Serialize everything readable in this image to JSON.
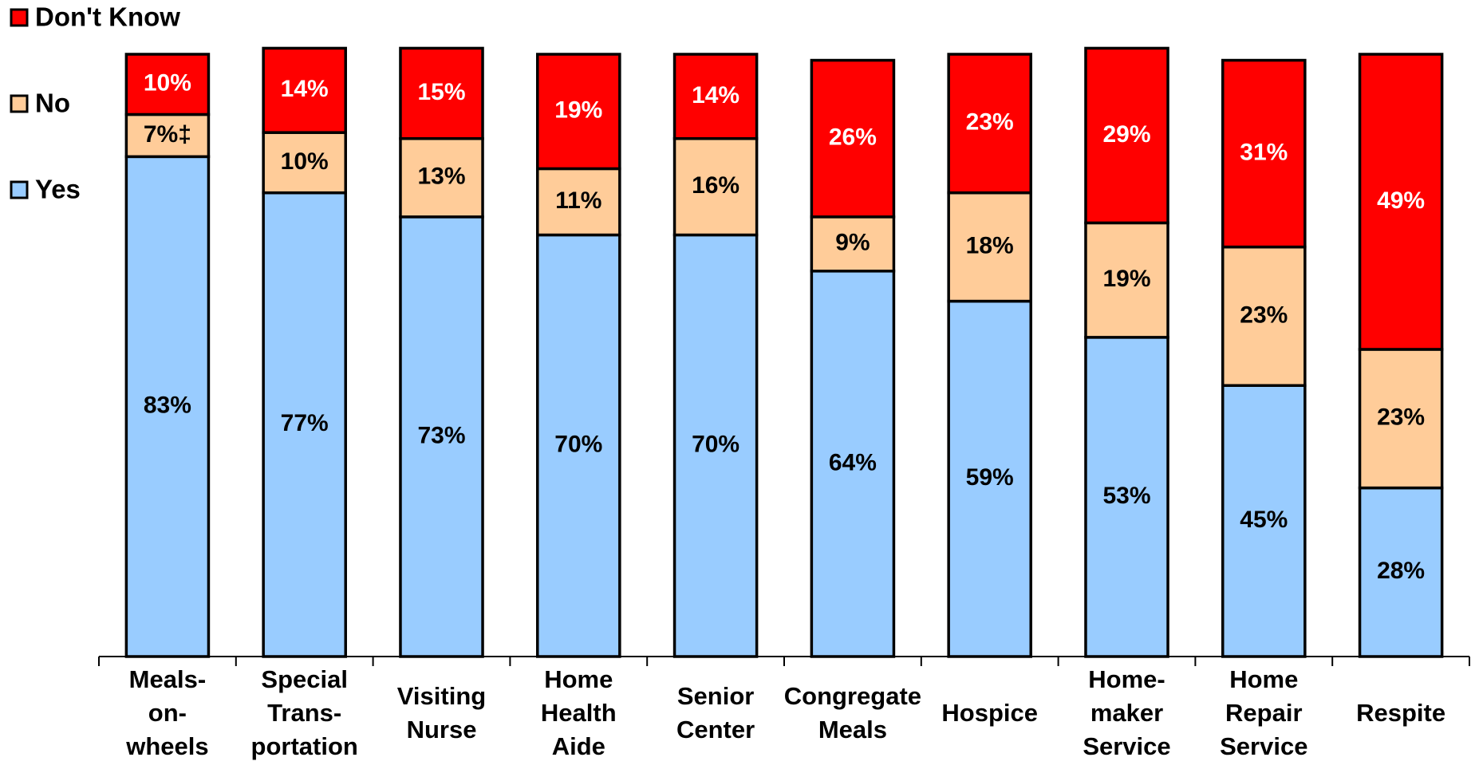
{
  "chart_data": {
    "type": "stacked_bar",
    "categories": [
      [
        "Meals-",
        "on-",
        "wheels"
      ],
      [
        "Special",
        "Trans-",
        "portation"
      ],
      [
        "Visiting",
        "Nurse"
      ],
      [
        "Home",
        "Health",
        "Aide"
      ],
      [
        "Senior",
        "Center"
      ],
      [
        "Congregate",
        "Meals"
      ],
      [
        "Hospice"
      ],
      [
        "Home-",
        "maker",
        "Service"
      ],
      [
        "Home",
        "Repair",
        "Service"
      ],
      [
        "Respite"
      ]
    ],
    "series": [
      {
        "name": "Yes",
        "color": "#99ccff",
        "values": [
          83,
          77,
          73,
          70,
          70,
          64,
          59,
          53,
          45,
          28
        ],
        "value_labels": [
          "83%",
          "77%",
          "73%",
          "70%",
          "70%",
          "64%",
          "59%",
          "53%",
          "45%",
          "28%"
        ]
      },
      {
        "name": "No",
        "color": "#ffcc99",
        "values": [
          7,
          10,
          13,
          11,
          16,
          9,
          18,
          19,
          23,
          23
        ],
        "value_labels": [
          "7%‡",
          "10%",
          "13%",
          "11%",
          "16%",
          "9%",
          "18%",
          "19%",
          "23%",
          "23%"
        ]
      },
      {
        "name": "Don't Know",
        "color": "#ff0000",
        "values": [
          10,
          14,
          15,
          19,
          14,
          26,
          23,
          29,
          31,
          49
        ],
        "value_labels": [
          "10%",
          "14%",
          "15%",
          "19%",
          "14%",
          "26%",
          "23%",
          "29%",
          "31%",
          "49%"
        ]
      }
    ],
    "ylim": [
      0,
      100
    ],
    "legend": "left"
  }
}
